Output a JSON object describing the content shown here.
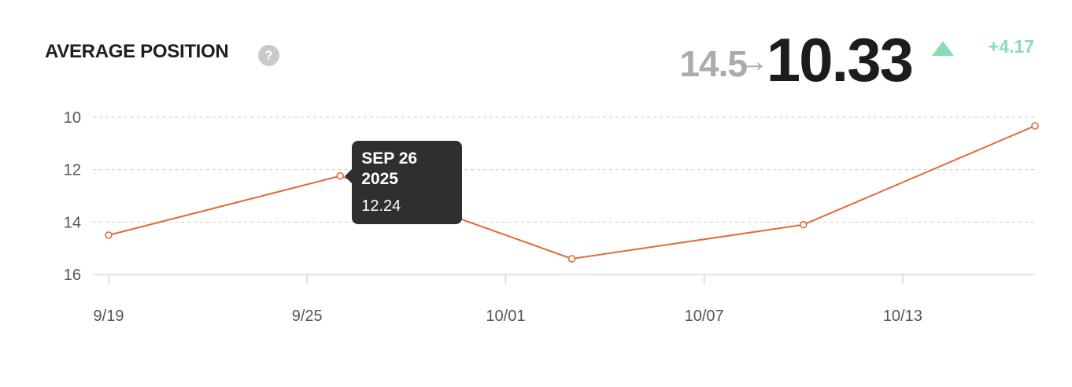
{
  "header": {
    "title": "AVERAGE POSITION",
    "help_glyph": "?",
    "help_icon": "question-circle-icon"
  },
  "summary": {
    "previous": "14.5",
    "arrow_glyph": "→",
    "current": "10.33",
    "change": "+4.17",
    "change_icon": "triangle-up-icon",
    "change_color": "#88ddb2"
  },
  "tooltip": {
    "date": "SEP 26 2025",
    "value": "12.24"
  },
  "chart_data": {
    "type": "line",
    "x": [
      "2025-09-19",
      "2025-09-26",
      "2025-10-03",
      "2025-10-10",
      "2025-10-17"
    ],
    "series": [
      {
        "values": [
          14.5,
          12.24,
          15.4,
          14.1,
          10.33
        ],
        "color": "#e06a3b"
      }
    ],
    "xticks": [
      {
        "date": "2025-09-19",
        "label": "9/19"
      },
      {
        "date": "2025-09-25",
        "label": "9/25"
      },
      {
        "date": "2025-10-01",
        "label": "10/01"
      },
      {
        "date": "2025-10-07",
        "label": "10/07"
      },
      {
        "date": "2025-10-13",
        "label": "10/13"
      }
    ],
    "yticks": [
      10,
      12,
      14,
      16
    ],
    "ylim": [
      10,
      16
    ],
    "y_inverted": true,
    "xlim": [
      "2025-09-19",
      "2025-10-17"
    ],
    "grid": "horizontal dashed",
    "title": "",
    "xlabel": "",
    "ylabel": ""
  }
}
